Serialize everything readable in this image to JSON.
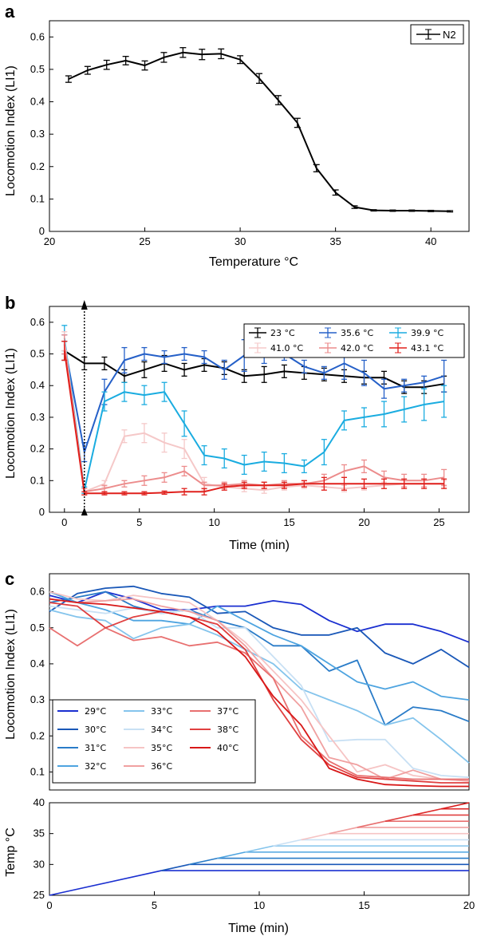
{
  "chart_data": [
    {
      "id": "a",
      "type": "line",
      "panel_label": "a",
      "xlabel": "Temperature °C",
      "ylabel": "Locomotion Index (LI1)",
      "xlim": [
        20,
        42
      ],
      "ylim": [
        0,
        0.65
      ],
      "x_ticks": [
        20,
        25,
        30,
        35,
        40
      ],
      "y_ticks": [
        0,
        0.1,
        0.2,
        0.3,
        0.4,
        0.5,
        0.6
      ],
      "legend_position": "top-right",
      "series": [
        {
          "name": "N2",
          "color": "#000000",
          "x": [
            21,
            22,
            23,
            24,
            25,
            26,
            27,
            28,
            29,
            30,
            31,
            32,
            33,
            34,
            35,
            36,
            37,
            38,
            39,
            40,
            41
          ],
          "y": [
            0.47,
            0.497,
            0.514,
            0.527,
            0.512,
            0.537,
            0.552,
            0.546,
            0.548,
            0.53,
            0.472,
            0.405,
            0.335,
            0.195,
            0.12,
            0.075,
            0.065,
            0.064,
            0.064,
            0.063,
            0.062
          ],
          "err": [
            0.01,
            0.012,
            0.014,
            0.013,
            0.014,
            0.015,
            0.015,
            0.016,
            0.015,
            0.012,
            0.015,
            0.014,
            0.014,
            0.011,
            0.008,
            0.004,
            0.002,
            0.002,
            0.002,
            0.002,
            0.002
          ]
        }
      ]
    },
    {
      "id": "b",
      "type": "line",
      "panel_label": "b",
      "xlabel": "Time (min)",
      "ylabel": "Locomotion Index (LI1)",
      "xlim": [
        -1,
        27
      ],
      "ylim": [
        0,
        0.65
      ],
      "x_ticks": [
        0,
        5,
        10,
        15,
        20,
        25
      ],
      "y_ticks": [
        0,
        0.1,
        0.2,
        0.3,
        0.4,
        0.5,
        0.6
      ],
      "legend_position": "top-right",
      "x": [
        0,
        1.33,
        2.67,
        4,
        5.33,
        6.67,
        8,
        9.33,
        10.67,
        12,
        13.33,
        14.67,
        16,
        17.33,
        18.67,
        20,
        21.33,
        22.67,
        24,
        25.33
      ],
      "series": [
        {
          "name": "23 °C",
          "color": "#000000",
          "y": [
            0.51,
            0.47,
            0.47,
            0.43,
            0.45,
            0.47,
            0.45,
            0.465,
            0.455,
            0.43,
            0.435,
            0.445,
            0.44,
            0.435,
            0.43,
            0.425,
            0.425,
            0.395,
            0.395,
            0.405
          ],
          "err": [
            0.03,
            0.02,
            0.02,
            0.02,
            0.025,
            0.025,
            0.02,
            0.02,
            0.02,
            0.02,
            0.025,
            0.02,
            0.02,
            0.02,
            0.02,
            0.02,
            0.02,
            0.02,
            0.02,
            0.025
          ]
        },
        {
          "name": "35.6 °C",
          "color": "#2560c8",
          "y": [
            0.53,
            0.19,
            0.38,
            0.48,
            0.5,
            0.49,
            0.5,
            0.49,
            0.45,
            0.495,
            0.5,
            0.5,
            0.46,
            0.44,
            0.47,
            0.44,
            0.39,
            0.4,
            0.41,
            0.43
          ],
          "err": [
            0.03,
            0.03,
            0.04,
            0.04,
            0.02,
            0.02,
            0.02,
            0.02,
            0.03,
            0.05,
            0.03,
            0.02,
            0.02,
            0.02,
            0.05,
            0.04,
            0.03,
            0.02,
            0.02,
            0.05
          ]
        },
        {
          "name": "39.9 °C",
          "color": "#1aace0",
          "y": [
            0.55,
            0.07,
            0.35,
            0.38,
            0.37,
            0.38,
            0.28,
            0.18,
            0.17,
            0.15,
            0.16,
            0.155,
            0.145,
            0.19,
            0.29,
            0.3,
            0.31,
            0.325,
            0.34,
            0.35
          ],
          "err": [
            0.04,
            0.01,
            0.03,
            0.03,
            0.03,
            0.03,
            0.04,
            0.03,
            0.03,
            0.03,
            0.03,
            0.03,
            0.02,
            0.04,
            0.03,
            0.03,
            0.04,
            0.04,
            0.05,
            0.05
          ]
        },
        {
          "name": "41.0 °C",
          "color": "#f5c8c8",
          "y": [
            0.54,
            0.065,
            0.09,
            0.24,
            0.25,
            0.22,
            0.2,
            0.09,
            0.08,
            0.075,
            0.07,
            0.08,
            0.085,
            0.08,
            0.075,
            0.08,
            0.085,
            0.09,
            0.09,
            0.09
          ],
          "err": [
            0.03,
            0.01,
            0.01,
            0.02,
            0.03,
            0.03,
            0.03,
            0.02,
            0.01,
            0.01,
            0.01,
            0.01,
            0.01,
            0.01,
            0.01,
            0.01,
            0.01,
            0.01,
            0.01,
            0.01
          ]
        },
        {
          "name": "42.0 °C",
          "color": "#ec8c8c",
          "y": [
            0.53,
            0.065,
            0.075,
            0.09,
            0.1,
            0.11,
            0.13,
            0.085,
            0.085,
            0.09,
            0.085,
            0.09,
            0.09,
            0.1,
            0.13,
            0.145,
            0.11,
            0.1,
            0.1,
            0.11
          ],
          "err": [
            0.03,
            0.01,
            0.01,
            0.01,
            0.015,
            0.015,
            0.015,
            0.01,
            0.01,
            0.01,
            0.01,
            0.01,
            0.01,
            0.02,
            0.02,
            0.02,
            0.02,
            0.02,
            0.02,
            0.025
          ]
        },
        {
          "name": "43.1 °C",
          "color": "#e0201c",
          "y": [
            0.51,
            0.06,
            0.06,
            0.06,
            0.06,
            0.062,
            0.065,
            0.065,
            0.08,
            0.085,
            0.085,
            0.085,
            0.09,
            0.09,
            0.09,
            0.09,
            0.09,
            0.09,
            0.09,
            0.09
          ],
          "err": [
            0.03,
            0.005,
            0.005,
            0.005,
            0.005,
            0.005,
            0.01,
            0.01,
            0.01,
            0.01,
            0.01,
            0.01,
            0.01,
            0.02,
            0.02,
            0.015,
            0.015,
            0.015,
            0.015,
            0.015
          ]
        }
      ],
      "marker_time": 1.33
    },
    {
      "id": "c",
      "type": "line",
      "panel_label": "c",
      "xlabel": "",
      "ylabel": "Locomotion Index (LI1)",
      "xlim": [
        0,
        20
      ],
      "ylim": [
        0.05,
        0.65
      ],
      "x_ticks": [],
      "y_ticks": [
        0.1,
        0.2,
        0.3,
        0.4,
        0.5,
        0.6
      ],
      "legend_position": "bottom-left",
      "x": [
        0,
        1.33,
        2.67,
        4,
        5.33,
        6.67,
        8,
        9.33,
        10.67,
        12,
        13.33,
        14.67,
        16,
        17.33,
        18.67,
        20
      ],
      "series": [
        {
          "name": "29°C",
          "color": "#1a2fd0",
          "y": [
            0.59,
            0.57,
            0.6,
            0.58,
            0.55,
            0.55,
            0.56,
            0.56,
            0.575,
            0.565,
            0.52,
            0.49,
            0.51,
            0.51,
            0.49,
            0.46
          ]
        },
        {
          "name": "30°C",
          "color": "#1a58b8",
          "y": [
            0.545,
            0.595,
            0.61,
            0.615,
            0.595,
            0.585,
            0.54,
            0.545,
            0.5,
            0.48,
            0.48,
            0.5,
            0.43,
            0.4,
            0.44,
            0.39
          ]
        },
        {
          "name": "31°C",
          "color": "#2a7cc8",
          "y": [
            0.57,
            0.585,
            0.6,
            0.56,
            0.54,
            0.55,
            0.52,
            0.5,
            0.45,
            0.45,
            0.38,
            0.41,
            0.23,
            0.28,
            0.27,
            0.24
          ]
        },
        {
          "name": "32°C",
          "color": "#4ea4e0",
          "y": [
            0.6,
            0.57,
            0.55,
            0.52,
            0.52,
            0.51,
            0.56,
            0.52,
            0.48,
            0.45,
            0.4,
            0.35,
            0.33,
            0.35,
            0.31,
            0.3
          ]
        },
        {
          "name": "33°C",
          "color": "#84c4ec",
          "y": [
            0.55,
            0.53,
            0.52,
            0.47,
            0.5,
            0.51,
            0.48,
            0.44,
            0.4,
            0.33,
            0.3,
            0.27,
            0.23,
            0.25,
            0.19,
            0.125
          ]
        },
        {
          "name": "34°C",
          "color": "#c8e0f4",
          "y": [
            0.56,
            0.55,
            0.54,
            0.555,
            0.54,
            0.55,
            0.5,
            0.5,
            0.42,
            0.34,
            0.185,
            0.19,
            0.19,
            0.11,
            0.09,
            0.085
          ]
        },
        {
          "name": "35°C",
          "color": "#f6c4c4",
          "y": [
            0.6,
            0.58,
            0.575,
            0.59,
            0.58,
            0.57,
            0.52,
            0.46,
            0.38,
            0.3,
            0.2,
            0.1,
            0.12,
            0.09,
            0.08,
            0.075
          ]
        },
        {
          "name": "36°C",
          "color": "#f0a0a0",
          "y": [
            0.58,
            0.57,
            0.575,
            0.58,
            0.56,
            0.545,
            0.52,
            0.45,
            0.36,
            0.28,
            0.14,
            0.12,
            0.08,
            0.105,
            0.08,
            0.075
          ]
        },
        {
          "name": "37°C",
          "color": "#e87070",
          "y": [
            0.5,
            0.45,
            0.5,
            0.465,
            0.475,
            0.45,
            0.46,
            0.43,
            0.36,
            0.2,
            0.13,
            0.09,
            0.085,
            0.08,
            0.08,
            0.08
          ]
        },
        {
          "name": "38°C",
          "color": "#e04040",
          "y": [
            0.57,
            0.56,
            0.5,
            0.53,
            0.545,
            0.53,
            0.51,
            0.44,
            0.3,
            0.19,
            0.12,
            0.085,
            0.08,
            0.075,
            0.07,
            0.07
          ]
        },
        {
          "name": "40°C",
          "color": "#d81818",
          "y": [
            0.58,
            0.57,
            0.565,
            0.555,
            0.545,
            0.53,
            0.49,
            0.42,
            0.31,
            0.23,
            0.11,
            0.08,
            0.065,
            0.062,
            0.06,
            0.06
          ]
        }
      ]
    },
    {
      "id": "c-temp",
      "type": "line",
      "panel_label": "",
      "xlabel": "Time (min)",
      "ylabel": "Temp °C",
      "xlim": [
        0,
        20
      ],
      "ylim": [
        25,
        40
      ],
      "x_ticks": [
        0,
        5,
        10,
        15,
        20
      ],
      "y_ticks": [
        25,
        30,
        35,
        40
      ],
      "ramp": {
        "start_temp": 25,
        "rate_per_min": 0.75
      },
      "plateaus": [
        {
          "temp": 29,
          "color": "#1a2fd0"
        },
        {
          "temp": 30,
          "color": "#1a58b8"
        },
        {
          "temp": 31,
          "color": "#2a7cc8"
        },
        {
          "temp": 32,
          "color": "#4ea4e0"
        },
        {
          "temp": 33,
          "color": "#84c4ec"
        },
        {
          "temp": 34,
          "color": "#c8e0f4"
        },
        {
          "temp": 35,
          "color": "#f6c4c4"
        },
        {
          "temp": 36,
          "color": "#f0a0a0"
        },
        {
          "temp": 37,
          "color": "#e87070"
        },
        {
          "temp": 38,
          "color": "#e04040"
        },
        {
          "temp": 39,
          "color": "#dd2a2a"
        },
        {
          "temp": 40,
          "color": "#d81818"
        }
      ]
    }
  ]
}
